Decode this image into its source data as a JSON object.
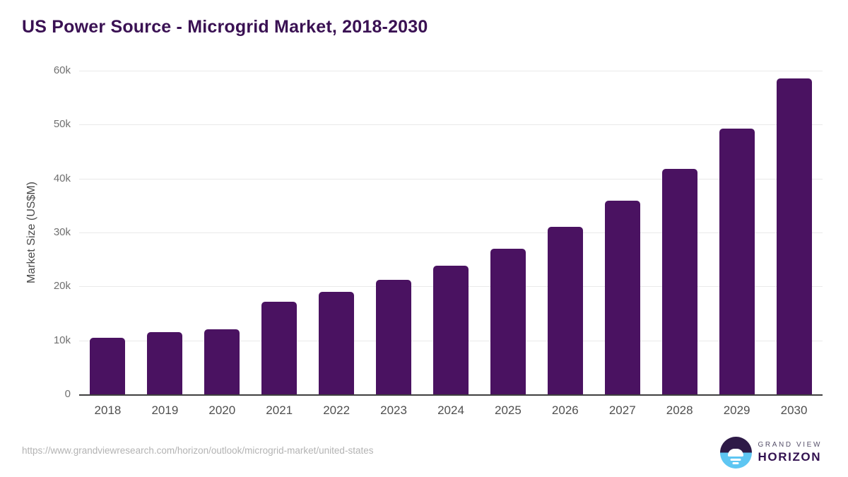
{
  "header": {
    "title": "US Power Source - Microgrid Market, 2018-2030"
  },
  "chart_data": {
    "type": "bar",
    "title": "US Power Source - Microgrid Market, 2018-2030",
    "categories": [
      "2018",
      "2019",
      "2020",
      "2021",
      "2022",
      "2023",
      "2024",
      "2025",
      "2026",
      "2027",
      "2028",
      "2029",
      "2030"
    ],
    "values": [
      10500,
      11500,
      12000,
      17100,
      19000,
      21200,
      23800,
      27000,
      31000,
      35900,
      41800,
      49300,
      58500
    ],
    "xlabel": "",
    "ylabel": "Market Size (US$M)",
    "ylim": [
      0,
      60000
    ],
    "yticks": [
      0,
      10000,
      20000,
      30000,
      40000,
      50000,
      60000
    ],
    "ytick_labels": [
      "0",
      "10k",
      "20k",
      "30k",
      "40k",
      "50k",
      "60k"
    ],
    "grid": true,
    "legend": false,
    "bar_color": "#4a1261"
  },
  "footer": {
    "source_url": "https://www.grandviewresearch.com/horizon/outlook/microgrid-market/united-states",
    "logo": {
      "line1": "GRAND VIEW",
      "line2": "HORIZON"
    }
  },
  "colors": {
    "title": "#3a1153",
    "bar": "#4a1261",
    "gridline": "#e9e9e9",
    "axis_line": "#3f3f3f",
    "y_tick_text": "#707070",
    "x_tick_text": "#4f4f4f",
    "url_text": "#b3b3b3",
    "logo_purple": "#2e1a47",
    "logo_blue": "#5ec6f2"
  }
}
